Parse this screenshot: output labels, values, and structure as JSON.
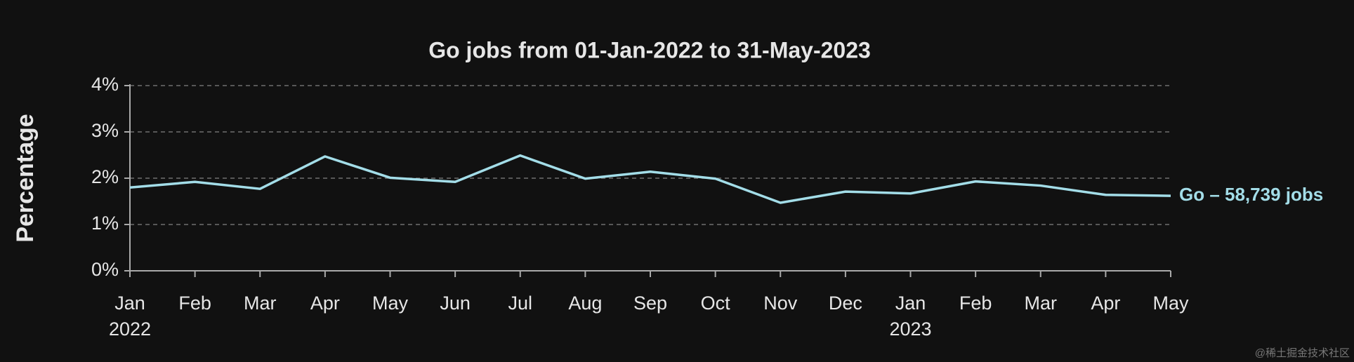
{
  "chart_data": {
    "type": "line",
    "title": "Go jobs from 01-Jan-2022 to 31-May-2023",
    "y_label": "Percentage",
    "categories": [
      "Jan",
      "Feb",
      "Mar",
      "Apr",
      "May",
      "Jun",
      "Jul",
      "Aug",
      "Sep",
      "Oct",
      "Nov",
      "Dec",
      "Jan",
      "Feb",
      "Mar",
      "Apr",
      "May"
    ],
    "x_group_labels": [
      "2022",
      null,
      null,
      null,
      null,
      null,
      null,
      null,
      null,
      null,
      null,
      null,
      "2023",
      null,
      null,
      null,
      null
    ],
    "series": [
      {
        "name": "Go – 58,739 jobs",
        "color": "#a3dde8",
        "values": [
          1.8,
          1.92,
          1.77,
          2.47,
          2.01,
          1.92,
          2.49,
          1.99,
          2.14,
          1.99,
          1.47,
          1.71,
          1.67,
          1.93,
          1.84,
          1.64,
          1.62
        ]
      }
    ],
    "ylim": [
      0,
      4
    ],
    "yticks": [
      {
        "value": 0,
        "label": "0%"
      },
      {
        "value": 1,
        "label": "1%"
      },
      {
        "value": 2,
        "label": "2%"
      },
      {
        "value": 3,
        "label": "3%"
      },
      {
        "value": 4,
        "label": "4%"
      }
    ],
    "grid": true
  },
  "watermark": "@稀土掘金技术社区"
}
